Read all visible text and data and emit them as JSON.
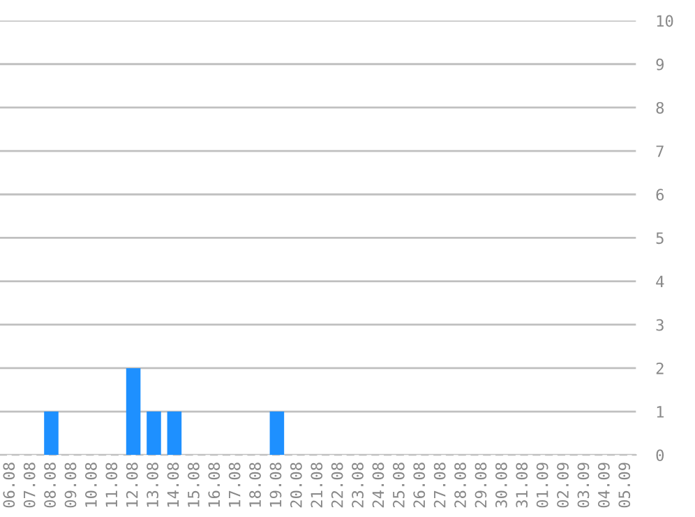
{
  "chart_data": {
    "type": "bar",
    "categories": [
      "06.08",
      "07.08",
      "08.08",
      "09.08",
      "10.08",
      "11.08",
      "12.08",
      "13.08",
      "14.08",
      "15.08",
      "16.08",
      "17.08",
      "18.08",
      "19.08",
      "20.08",
      "21.08",
      "22.08",
      "23.08",
      "24.08",
      "25.08",
      "26.08",
      "27.08",
      "28.08",
      "29.08",
      "30.08",
      "31.08",
      "01.09",
      "02.09",
      "03.09",
      "04.09",
      "05.09"
    ],
    "values": [
      0,
      0,
      1,
      0,
      0,
      0,
      2,
      1,
      1,
      0,
      0,
      0,
      0,
      1,
      0,
      0,
      0,
      0,
      0,
      0,
      0,
      0,
      0,
      0,
      0,
      0,
      0,
      0,
      0,
      0,
      0
    ],
    "color": "#1e90ff",
    "ylim": [
      0,
      10
    ],
    "yticks": [
      0,
      1,
      2,
      3,
      4,
      5,
      6,
      7,
      8,
      9,
      10
    ],
    "grid": "y"
  }
}
